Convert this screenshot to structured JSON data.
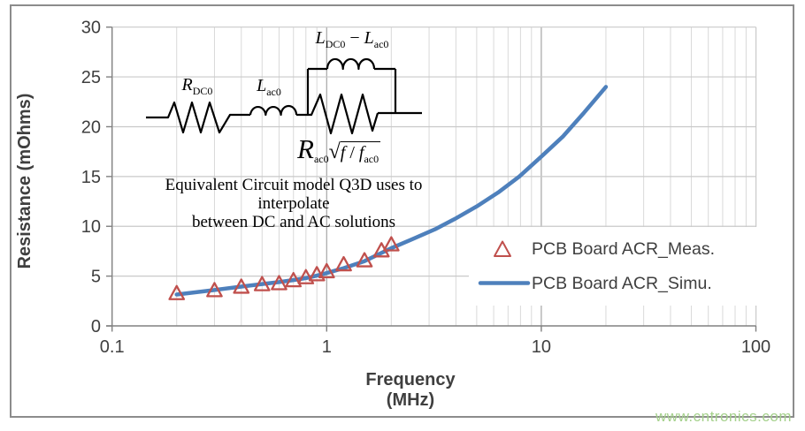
{
  "watermark": "www.cntronics.com",
  "colors": {
    "simu_line": "#4E80BC",
    "meas_marker": "#C0504D",
    "grid_minor": "#D9D9D9",
    "grid_major": "#A6A6A6",
    "grid_right": "#C9C9C9",
    "grid_h": "#C9C9C9",
    "axis": "#808080",
    "tick_text": "#3F3F3F",
    "watermark": "#A5D18C",
    "border": "#8C8C8C",
    "circuit": "#000000",
    "legend_bg": "#FFFFFF"
  },
  "inset": {
    "caption_line1": "Equivalent Circuit model  Q3D uses to interpolate",
    "caption_line2": "between DC and AC solutions",
    "labels": {
      "r_dc0": [
        {
          "t": "R",
          "i": true
        },
        {
          "t": "DC0",
          "sub": true
        }
      ],
      "l_ac0": [
        {
          "t": "L",
          "i": true
        },
        {
          "t": "ac0",
          "sub": true
        }
      ],
      "l_diff": [
        {
          "t": "L",
          "i": true
        },
        {
          "t": "DC0",
          "sub": true
        },
        {
          "t": " − ",
          "i": false
        },
        {
          "t": "L",
          "i": true
        },
        {
          "t": "ac0",
          "sub": true
        }
      ],
      "formula": [
        {
          "t": "R",
          "i": true,
          "cls": "fR"
        },
        {
          "t": "ac0",
          "sub": true
        },
        {
          "t": "√",
          "cls": "fRad"
        },
        {
          "grp": [
            {
              "t": "f",
              "i": true
            },
            {
              "t": " / "
            },
            {
              "t": "f",
              "i": true
            },
            {
              "t": "ac0",
              "sub": true
            }
          ],
          "cls": "fOver"
        }
      ]
    }
  },
  "chart_data": {
    "type": "scatter",
    "subtype": "line+scatter, log x-axis",
    "title": "",
    "xlabel": "Frequency (MHz)",
    "ylabel": "Resistance (mOhms)",
    "x_scale": "log",
    "xlim": [
      0.1,
      100
    ],
    "ylim": [
      0,
      30
    ],
    "x_ticks": [
      0.1,
      1,
      10,
      100
    ],
    "x_tick_labels": [
      "0.1",
      "1",
      "10",
      "100"
    ],
    "y_ticks": [
      0,
      5,
      10,
      15,
      20,
      25,
      30
    ],
    "grid": true,
    "legend_position": "inside-right",
    "series": [
      {
        "name": "PCB Board ACR_Meas.",
        "type": "scatter",
        "marker": "open-triangle",
        "x": [
          0.2,
          0.3,
          0.4,
          0.5,
          0.6,
          0.7,
          0.8,
          0.9,
          1.0,
          1.2,
          1.5,
          1.8,
          2.0
        ],
        "y": [
          3.3,
          3.6,
          3.95,
          4.2,
          4.3,
          4.6,
          4.9,
          5.2,
          5.5,
          6.2,
          6.6,
          7.6,
          8.2
        ]
      },
      {
        "name": "PCB Board ACR_Simu.",
        "type": "line",
        "x": [
          0.2,
          0.3,
          0.4,
          0.5,
          0.6,
          0.7,
          0.8,
          0.9,
          1.0,
          1.2,
          1.5,
          2.0,
          2.5,
          3.2,
          4.0,
          5.0,
          6.3,
          7.9,
          10.0,
          12.6,
          15.8,
          20.0
        ],
        "y": [
          3.15,
          3.6,
          3.95,
          4.2,
          4.4,
          4.6,
          4.8,
          5.05,
          5.3,
          5.8,
          6.5,
          7.8,
          8.7,
          9.7,
          10.8,
          12.0,
          13.4,
          15.0,
          17.0,
          19.0,
          21.4,
          24.0
        ]
      }
    ]
  }
}
